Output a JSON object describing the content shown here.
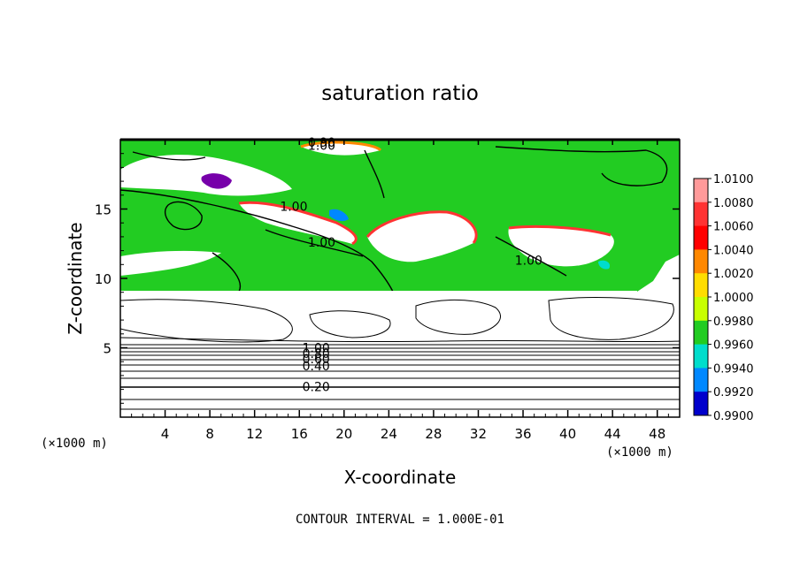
{
  "chart_data": {
    "type": "heatmap",
    "title": "saturation ratio",
    "xlabel": "X-coordinate",
    "ylabel": "Z-coordinate",
    "x_unit_left": "(×1000 m)",
    "x_unit_right": "(×1000 m)",
    "xlim": [
      0,
      50
    ],
    "ylim": [
      0,
      20
    ],
    "x_ticks": [
      4,
      8,
      12,
      16,
      20,
      24,
      28,
      32,
      36,
      40,
      44,
      48
    ],
    "y_ticks": [
      5,
      10,
      15
    ],
    "colorbar": {
      "levels": [
        "1.0100",
        "1.0080",
        "1.0060",
        "1.0040",
        "1.0020",
        "1.0000",
        "0.9980",
        "0.9960",
        "0.9940",
        "0.9920",
        "0.9900"
      ],
      "colors": [
        "#ff9a9a",
        "#ff3333",
        "#ff0000",
        "#ff8800",
        "#ffdd00",
        "#c8ff00",
        "#22cc22",
        "#00ddcc",
        "#0088ff",
        "#0000cc",
        "#7700aa"
      ]
    },
    "contour_labels": [
      {
        "text": "0.20",
        "x": 17.5,
        "z": 2.2
      },
      {
        "text": "0.40",
        "x": 17.5,
        "z": 3.7
      },
      {
        "text": "0.60",
        "x": 17.5,
        "z": 4.2
      },
      {
        "text": "0.80",
        "x": 17.5,
        "z": 4.6
      },
      {
        "text": "1.00",
        "x": 17.5,
        "z": 5.0
      },
      {
        "text": "1.00",
        "x": 15.5,
        "z": 15.2
      },
      {
        "text": "1.00",
        "x": 18.0,
        "z": 12.6
      },
      {
        "text": "1.00",
        "x": 36.5,
        "z": 11.3
      },
      {
        "text": "1.00",
        "x": 18.0,
        "z": 19.6
      },
      {
        "text": "0.90",
        "x": 18.0,
        "z": 19.8
      }
    ],
    "footer": "CONTOUR INTERVAL = 1.000E-01"
  }
}
